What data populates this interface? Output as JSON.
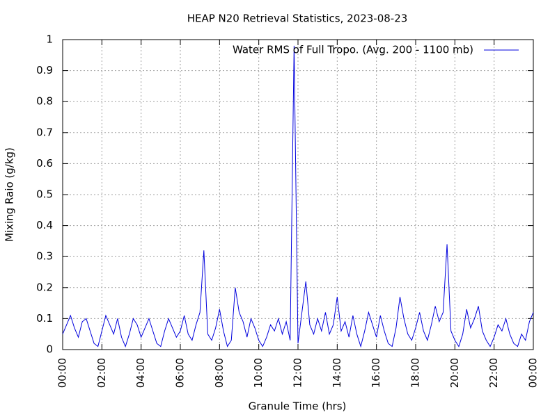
{
  "chart_data": {
    "type": "line",
    "title": "HEAP N20 Retrieval Statistics, 2023-08-23",
    "x_label": "Granule Time (hrs)",
    "y_label": "Mixing Raio (g/kg)",
    "xlim": [
      0,
      24
    ],
    "ylim": [
      0,
      1
    ],
    "xticks": [
      {
        "value": 0,
        "label": "00:00"
      },
      {
        "value": 2,
        "label": "02:00"
      },
      {
        "value": 4,
        "label": "04:00"
      },
      {
        "value": 6,
        "label": "06:00"
      },
      {
        "value": 8,
        "label": "08:00"
      },
      {
        "value": 10,
        "label": "10:00"
      },
      {
        "value": 12,
        "label": "12:00"
      },
      {
        "value": 14,
        "label": "14:00"
      },
      {
        "value": 16,
        "label": "16:00"
      },
      {
        "value": 18,
        "label": "18:00"
      },
      {
        "value": 20,
        "label": "20:00"
      },
      {
        "value": 22,
        "label": "22:00"
      },
      {
        "value": 24,
        "label": "00:00"
      }
    ],
    "yticks": [
      0,
      0.1,
      0.2,
      0.3,
      0.4,
      0.5,
      0.6,
      0.7,
      0.8,
      0.9,
      1
    ],
    "grid": true,
    "legend": "upper right",
    "x": [
      0,
      0.2,
      0.4,
      0.6,
      0.8,
      1,
      1.2,
      1.4,
      1.6,
      1.8,
      2,
      2.2,
      2.4,
      2.6,
      2.8,
      3,
      3.2,
      3.4,
      3.6,
      3.8,
      4,
      4.2,
      4.4,
      4.6,
      4.8,
      5,
      5.2,
      5.4,
      5.6,
      5.8,
      6,
      6.2,
      6.4,
      6.6,
      6.8,
      7,
      7.2,
      7.4,
      7.6,
      7.8,
      8,
      8.2,
      8.4,
      8.6,
      8.8,
      9,
      9.2,
      9.4,
      9.6,
      9.8,
      10,
      10.2,
      10.4,
      10.6,
      10.8,
      11,
      11.2,
      11.4,
      11.6,
      11.8,
      12,
      12.2,
      12.4,
      12.6,
      12.8,
      13,
      13.2,
      13.4,
      13.6,
      13.8,
      14,
      14.2,
      14.4,
      14.6,
      14.8,
      15,
      15.2,
      15.4,
      15.6,
      15.8,
      16,
      16.2,
      16.4,
      16.6,
      16.8,
      17,
      17.2,
      17.4,
      17.6,
      17.8,
      18,
      18.2,
      18.4,
      18.6,
      18.8,
      19,
      19.2,
      19.4,
      19.6,
      19.8,
      20,
      20.2,
      20.4,
      20.6,
      20.8,
      21,
      21.2,
      21.4,
      21.6,
      21.8,
      22,
      22.2,
      22.4,
      22.6,
      22.8,
      23,
      23.2,
      23.4,
      23.6,
      23.8,
      24
    ],
    "series": [
      {
        "name": "Water RMS of Full Tropo. (Avg. 200 - 1100 mb)",
        "color": "#0000dd",
        "values": [
          0.05,
          0.08,
          0.11,
          0.07,
          0.04,
          0.09,
          0.1,
          0.06,
          0.02,
          0.01,
          0.06,
          0.11,
          0.08,
          0.05,
          0.1,
          0.04,
          0.01,
          0.05,
          0.1,
          0.08,
          0.04,
          0.07,
          0.1,
          0.06,
          0.02,
          0.01,
          0.06,
          0.1,
          0.07,
          0.04,
          0.06,
          0.11,
          0.05,
          0.03,
          0.08,
          0.12,
          0.32,
          0.05,
          0.03,
          0.07,
          0.13,
          0.06,
          0.01,
          0.03,
          0.2,
          0.12,
          0.09,
          0.04,
          0.1,
          0.07,
          0.03,
          0.01,
          0.04,
          0.08,
          0.06,
          0.1,
          0.05,
          0.09,
          0.03,
          0.98,
          0.02,
          0.12,
          0.22,
          0.08,
          0.05,
          0.1,
          0.06,
          0.12,
          0.05,
          0.08,
          0.17,
          0.06,
          0.09,
          0.04,
          0.11,
          0.05,
          0.01,
          0.06,
          0.12,
          0.08,
          0.04,
          0.11,
          0.06,
          0.02,
          0.01,
          0.07,
          0.17,
          0.1,
          0.05,
          0.03,
          0.07,
          0.12,
          0.06,
          0.03,
          0.08,
          0.14,
          0.09,
          0.12,
          0.34,
          0.06,
          0.03,
          0.01,
          0.05,
          0.13,
          0.07,
          0.1,
          0.14,
          0.06,
          0.03,
          0.01,
          0.04,
          0.08,
          0.06,
          0.1,
          0.05,
          0.02,
          0.01,
          0.05,
          0.03,
          0.09,
          0.12
        ]
      }
    ]
  }
}
